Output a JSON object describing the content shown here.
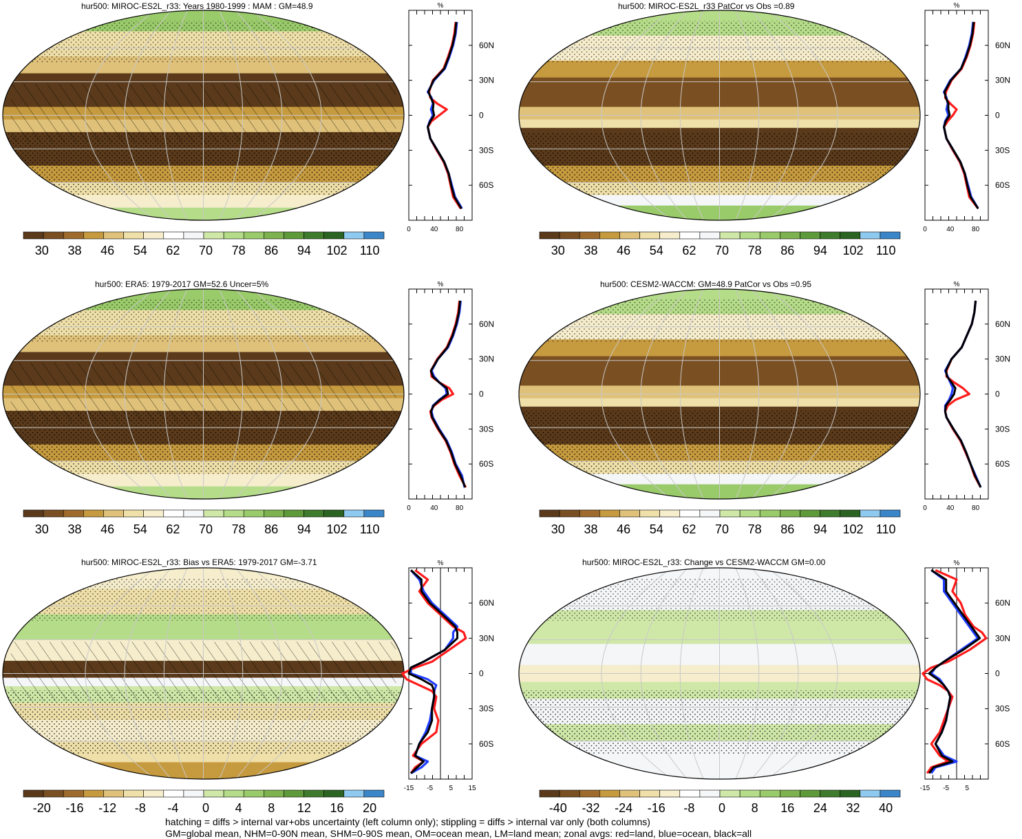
{
  "chart_data": [
    {
      "type": "heatmap",
      "title": "hur500: MIROC-ES2L_r33: Years 1980-1999 : MAM : GM=48.9",
      "colorbar_ticks": [
        "30",
        "38",
        "46",
        "54",
        "62",
        "70",
        "78",
        "86",
        "94",
        "102",
        "110"
      ],
      "colorbar_colors": [
        "#5a3a1a",
        "#7a4f22",
        "#9e6b2c",
        "#c69a3e",
        "#dfc179",
        "#efdfa8",
        "#f6edcc",
        "#ffffff",
        "#f4f6f8",
        "#cfe8a8",
        "#b5dc88",
        "#9acb6a",
        "#7db24e",
        "#5e9a3a",
        "#3e7b2c",
        "#2a6322",
        "#8ec9ef",
        "#3a86c8"
      ],
      "zonal_profile": {
        "title": "%",
        "xlim": [
          0,
          100
        ],
        "xticks": [
          "0",
          "40",
          "80"
        ],
        "yticks": [
          "60N",
          "30N",
          "0",
          "30S",
          "60S"
        ],
        "lat": [
          80,
          70,
          60,
          50,
          40,
          30,
          20,
          15,
          10,
          5,
          0,
          -5,
          -10,
          -15,
          -20,
          -30,
          -40,
          -50,
          -60,
          -70,
          -80
        ],
        "series": [
          {
            "name": "land",
            "color": "#ff1a1a",
            "values": [
              74,
              72,
              68,
              62,
              55,
              38,
              32,
              34,
              45,
              60,
              48,
              36,
              30,
              32,
              34,
              44,
              55,
              62,
              66,
              70,
              82
            ]
          },
          {
            "name": "ocean",
            "color": "#1f3cff",
            "values": [
              76,
              74,
              70,
              64,
              57,
              40,
              30,
              36,
              38,
              35,
              38,
              33,
              30,
              32,
              34,
              45,
              56,
              63,
              68,
              73,
              84
            ]
          },
          {
            "name": "all",
            "color": "#000000",
            "values": [
              75,
              73,
              69,
              63,
              56,
              39,
              31,
              35,
              39,
              38,
              40,
              34,
              30,
              32,
              34,
              45,
              56,
              63,
              67,
              72,
              83
            ]
          }
        ]
      }
    },
    {
      "type": "heatmap",
      "title": "hur500: MIROC-ES2L_r33 PatCor vs Obs =0.89",
      "colorbar_ticks": [
        "30",
        "38",
        "46",
        "54",
        "62",
        "70",
        "78",
        "86",
        "94",
        "102",
        "110"
      ],
      "zonal_profile": {
        "title": "%",
        "xlim": [
          0,
          100
        ],
        "xticks": [
          "0",
          "40",
          "80"
        ],
        "yticks": [
          "60N",
          "30N",
          "0",
          "30S",
          "60S"
        ],
        "lat": [
          80,
          70,
          60,
          50,
          40,
          30,
          20,
          15,
          10,
          5,
          0,
          -5,
          -10,
          -15,
          -20,
          -30,
          -40,
          -50,
          -60,
          -70,
          -80
        ],
        "series": [
          {
            "name": "land",
            "color": "#ff1a1a",
            "values": [
              78,
              76,
              72,
              66,
              58,
              42,
              33,
              32,
              40,
              50,
              44,
              36,
              30,
              32,
              34,
              44,
              55,
              62,
              66,
              70,
              84
            ]
          },
          {
            "name": "ocean",
            "color": "#1f3cff",
            "values": [
              76,
              74,
              70,
              64,
              57,
              40,
              30,
              34,
              36,
              34,
              37,
              32,
              30,
              32,
              34,
              45,
              56,
              63,
              68,
              73,
              84
            ]
          },
          {
            "name": "all",
            "color": "#000000",
            "values": [
              77,
              75,
              71,
              65,
              57,
              41,
              31,
              33,
              37,
              37,
              39,
              33,
              30,
              32,
              34,
              45,
              56,
              63,
              67,
              72,
              84
            ]
          }
        ]
      }
    },
    {
      "type": "heatmap",
      "title": "hur500: ERA5: 1979-2017 GM=52.6 Uncer=5%",
      "colorbar_ticks": [
        "30",
        "38",
        "46",
        "54",
        "62",
        "70",
        "78",
        "86",
        "94",
        "102",
        "110"
      ],
      "zonal_profile": {
        "title": "%",
        "xlim": [
          0,
          100
        ],
        "xticks": [
          "0",
          "40",
          "80"
        ],
        "yticks": [
          "60N",
          "30N",
          "0",
          "30S",
          "60S"
        ],
        "lat": [
          80,
          70,
          60,
          50,
          40,
          30,
          20,
          15,
          10,
          5,
          0,
          -5,
          -10,
          -15,
          -20,
          -30,
          -40,
          -50,
          -60,
          -70,
          -80
        ],
        "series": [
          {
            "name": "land",
            "color": "#ff1a1a",
            "values": [
              80,
              78,
              74,
              68,
              60,
              45,
              35,
              36,
              48,
              64,
              70,
              52,
              40,
              34,
              36,
              46,
              58,
              66,
              72,
              80,
              90
            ]
          },
          {
            "name": "ocean",
            "color": "#1f3cff",
            "values": [
              82,
              80,
              76,
              70,
              62,
              46,
              36,
              40,
              48,
              58,
              60,
              48,
              38,
              36,
              38,
              48,
              60,
              68,
              74,
              84,
              88
            ]
          },
          {
            "name": "all",
            "color": "#000000",
            "values": [
              81,
              79,
              75,
              69,
              61,
              46,
              35,
              38,
              48,
              60,
              62,
              49,
              39,
              35,
              37,
              47,
              59,
              67,
              73,
              82,
              89
            ]
          }
        ]
      }
    },
    {
      "type": "heatmap",
      "title": "hur500: CESM2-WACCM: GM=48.9 PatCor vs Obs =0.95",
      "colorbar_ticks": [
        "30",
        "38",
        "46",
        "54",
        "62",
        "70",
        "78",
        "86",
        "94",
        "102",
        "110"
      ],
      "zonal_profile": {
        "title": "%",
        "xlim": [
          0,
          100
        ],
        "xticks": [
          "0",
          "40",
          "80"
        ],
        "yticks": [
          "60N",
          "30N",
          "0",
          "30S",
          "60S"
        ],
        "lat": [
          80,
          70,
          60,
          50,
          40,
          30,
          20,
          15,
          10,
          5,
          0,
          -5,
          -10,
          -15,
          -20,
          -30,
          -40,
          -50,
          -60,
          -70,
          -80
        ],
        "series": [
          {
            "name": "land",
            "color": "#ff1a1a",
            "values": [
              80,
              78,
              74,
              66,
              58,
              42,
              34,
              34,
              46,
              60,
              70,
              48,
              36,
              32,
              34,
              44,
              56,
              64,
              72,
              78,
              88
            ]
          },
          {
            "name": "ocean",
            "color": "#1f3cff",
            "values": [
              80,
              78,
              74,
              66,
              58,
              42,
              32,
              36,
              40,
              44,
              42,
              38,
              32,
              32,
              34,
              45,
              57,
              65,
              72,
              80,
              88
            ]
          },
          {
            "name": "all",
            "color": "#000000",
            "values": [
              80,
              78,
              74,
              66,
              58,
              42,
              33,
              35,
              42,
              48,
              46,
              40,
              33,
              32,
              34,
              45,
              57,
              65,
              72,
              79,
              88
            ]
          }
        ]
      }
    },
    {
      "type": "heatmap",
      "title": "hur500: MIROC-ES2L_r33: Bias vs ERA5: 1979-2017 GM=-3.71",
      "colorbar_ticks": [
        "-20",
        "-16",
        "-12",
        "-8",
        "-4",
        "0",
        "4",
        "8",
        "12",
        "16",
        "20"
      ],
      "zonal_profile": {
        "title": "%",
        "xlim": [
          -15,
          15
        ],
        "xticks": [
          "-15",
          "-5",
          "5",
          "15"
        ],
        "yticks": [
          "60N",
          "30N",
          "0",
          "30S",
          "60S"
        ],
        "lat": [
          88,
          80,
          70,
          60,
          50,
          40,
          35,
          30,
          25,
          20,
          10,
          5,
          0,
          -5,
          -10,
          -15,
          -20,
          -30,
          -40,
          -50,
          -60,
          -70,
          -75,
          -80,
          -85
        ],
        "series": [
          {
            "name": "land",
            "color": "#ff1a1a",
            "values": [
              -12,
              -6,
              -10,
              -6,
              0,
              6,
              11,
              12,
              8,
              4,
              -4,
              -12,
              -18,
              -16,
              -10,
              -4,
              -2,
              -3,
              -1,
              -2,
              -9,
              -13,
              -8,
              -12,
              -14
            ]
          },
          {
            "name": "ocean",
            "color": "#1f3cff",
            "values": [
              -14,
              -10,
              -8,
              -4,
              2,
              8,
              6,
              6,
              4,
              2,
              -8,
              -14,
              -14,
              -6,
              -2,
              -3,
              -3,
              -4,
              -5,
              -7,
              -10,
              -12,
              -6,
              -9,
              -14
            ]
          },
          {
            "name": "all",
            "color": "#000000",
            "values": [
              -14,
              -9,
              -9,
              -5,
              1,
              7,
              8,
              8,
              5,
              2,
              -8,
              -14,
              -15,
              -9,
              -4,
              -3,
              -3,
              -4,
              -4,
              -6,
              -10,
              -12,
              -8,
              -11,
              -14
            ]
          }
        ]
      }
    },
    {
      "type": "heatmap",
      "title": "hur500: MIROC-ES2L_r33: Change vs CESM2-WACCM GM=0.00",
      "colorbar_ticks": [
        "-40",
        "-32",
        "-24",
        "-16",
        "-8",
        "0",
        "8",
        "16",
        "24",
        "32",
        "40"
      ],
      "zonal_profile": {
        "title": "%",
        "xlim": [
          -15,
          15
        ],
        "xticks": [
          "-15",
          "-5",
          "5"
        ],
        "yticks": [
          "60N",
          "30N",
          "0",
          "30S",
          "60S"
        ],
        "lat": [
          88,
          80,
          70,
          60,
          50,
          40,
          35,
          30,
          25,
          20,
          10,
          5,
          0,
          -5,
          -10,
          -15,
          -20,
          -30,
          -40,
          -50,
          -60,
          -70,
          -75,
          -80,
          -85
        ],
        "series": [
          {
            "name": "land",
            "color": "#ff1a1a",
            "values": [
              -10,
              0,
              -2,
              2,
              4,
              8,
              12,
              14,
              10,
              6,
              -4,
              -12,
              -16,
              -14,
              -8,
              -4,
              -2,
              -4,
              -6,
              -8,
              -12,
              -8,
              -4,
              -12,
              -14
            ]
          },
          {
            "name": "ocean",
            "color": "#1f3cff",
            "values": [
              -12,
              -6,
              -6,
              -2,
              2,
              6,
              8,
              10,
              6,
              2,
              -6,
              -10,
              -12,
              -8,
              -6,
              -4,
              -3,
              -4,
              -5,
              -7,
              -10,
              -6,
              0,
              -10,
              -12
            ]
          },
          {
            "name": "all",
            "color": "#000000",
            "values": [
              -12,
              -5,
              -5,
              -1,
              3,
              7,
              9,
              11,
              7,
              3,
              -6,
              -10,
              -13,
              -9,
              -6,
              -4,
              -3,
              -4,
              -5,
              -7,
              -10,
              -7,
              -2,
              -11,
              -13
            ]
          }
        ]
      }
    }
  ],
  "footer": {
    "line1": "hatching = diffs > internal var+obs uncertainty (left column only); stippling = diffs > internal var only (both columns)",
    "line2": "GM=global mean, NHM=0-90N mean, SHM=0-90S mean, OM=ocean mean, LM=land mean; zonal avgs: red=land, blue=ocean, black=all"
  }
}
